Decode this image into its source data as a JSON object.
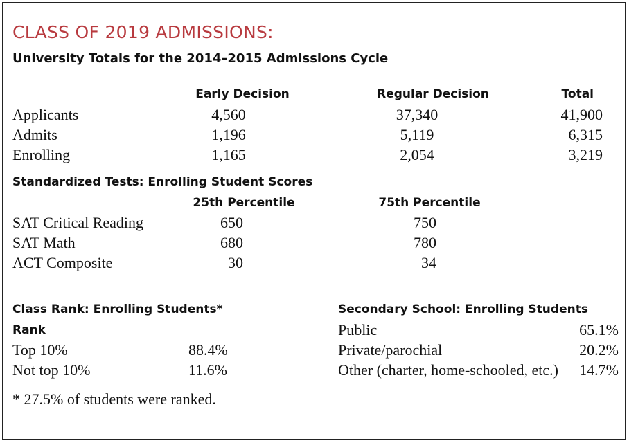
{
  "header": {
    "title": "CLASS OF 2019 ADMISSIONS:",
    "subtitle": "University Totals for the 2014–2015 Admissions Cycle"
  },
  "admissions": {
    "columns": [
      "Early Decision",
      "Regular Decision",
      "Total"
    ],
    "rows": [
      {
        "label": "Applicants",
        "values": [
          "4,560",
          "37,340",
          "41,900"
        ]
      },
      {
        "label": "Admits",
        "values": [
          "1,196",
          "5,119",
          "6,315"
        ]
      },
      {
        "label": "Enrolling",
        "values": [
          "1,165",
          "2,054",
          "3,219"
        ]
      }
    ]
  },
  "tests": {
    "title": "Standardized Tests: Enrolling Student Scores",
    "columns": [
      "25th Percentile",
      "75th Percentile"
    ],
    "rows": [
      {
        "label": "SAT Critical Reading",
        "values": [
          "650",
          "750"
        ]
      },
      {
        "label": "SAT Math",
        "values": [
          "680",
          "780"
        ]
      },
      {
        "label": "ACT Composite",
        "values": [
          "30",
          "34"
        ]
      }
    ]
  },
  "class_rank": {
    "title": "Class Rank: Enrolling Students*",
    "column": "Rank",
    "rows": [
      {
        "label": "Top 10%",
        "value": "88.4%"
      },
      {
        "label": "Not top 10%",
        "value": "11.6%"
      }
    ],
    "footnote": "* 27.5% of students were ranked."
  },
  "secondary": {
    "title": "Secondary School: Enrolling Students",
    "rows": [
      {
        "label": "Public",
        "value": "65.1%"
      },
      {
        "label": "Private/parochial",
        "value": "20.2%"
      },
      {
        "label": "Other (charter, home-schooled, etc.)",
        "value": "14.7%"
      }
    ]
  }
}
